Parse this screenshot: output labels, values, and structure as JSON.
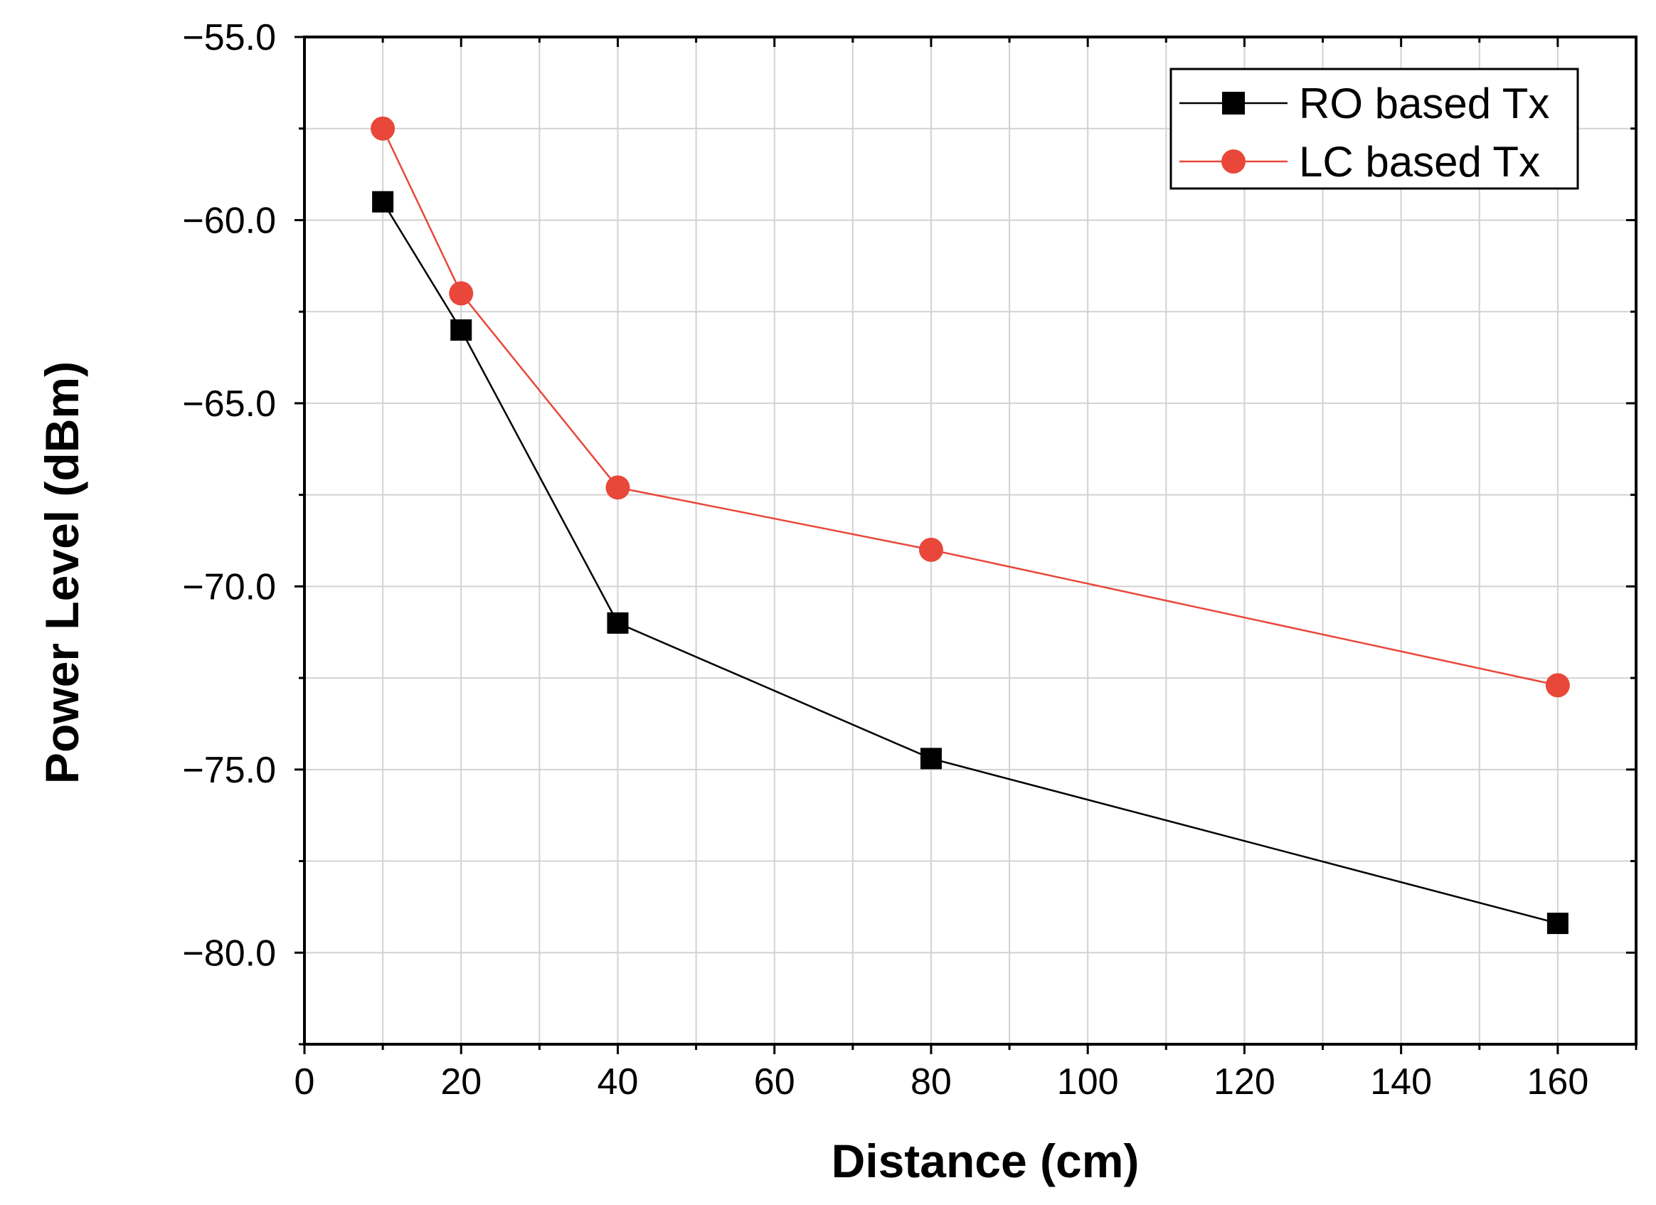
{
  "chart_data": {
    "type": "line",
    "title": "",
    "xlabel": "Distance (cm)",
    "ylabel": "Power Level (dBm)",
    "xlim": [
      0,
      170
    ],
    "ylim": [
      -82.5,
      -55.0
    ],
    "xticks": [
      0,
      20,
      40,
      60,
      80,
      100,
      120,
      140,
      160
    ],
    "xtick_labels": [
      "0",
      "20",
      "40",
      "60",
      "80",
      "100",
      "120",
      "140",
      "160"
    ],
    "yticks": [
      -55.0,
      -60.0,
      -65.0,
      -70.0,
      -75.0,
      -80.0
    ],
    "ytick_labels": [
      "−55.0",
      "−60.0",
      "−65.0",
      "−70.0",
      "−75.0",
      "−80.0"
    ],
    "grid": true,
    "legend_position": "top-right",
    "x": [
      10,
      20,
      40,
      80,
      160
    ],
    "series": [
      {
        "name": "RO based Tx",
        "marker": "square",
        "color": "#000000",
        "values": [
          -59.5,
          -63.0,
          -71.0,
          -74.7,
          -79.2
        ]
      },
      {
        "name": "LC based Tx",
        "marker": "circle",
        "color": "#e8473a",
        "values": [
          -57.5,
          -62.0,
          -67.3,
          -69.0,
          -72.7
        ]
      }
    ]
  }
}
